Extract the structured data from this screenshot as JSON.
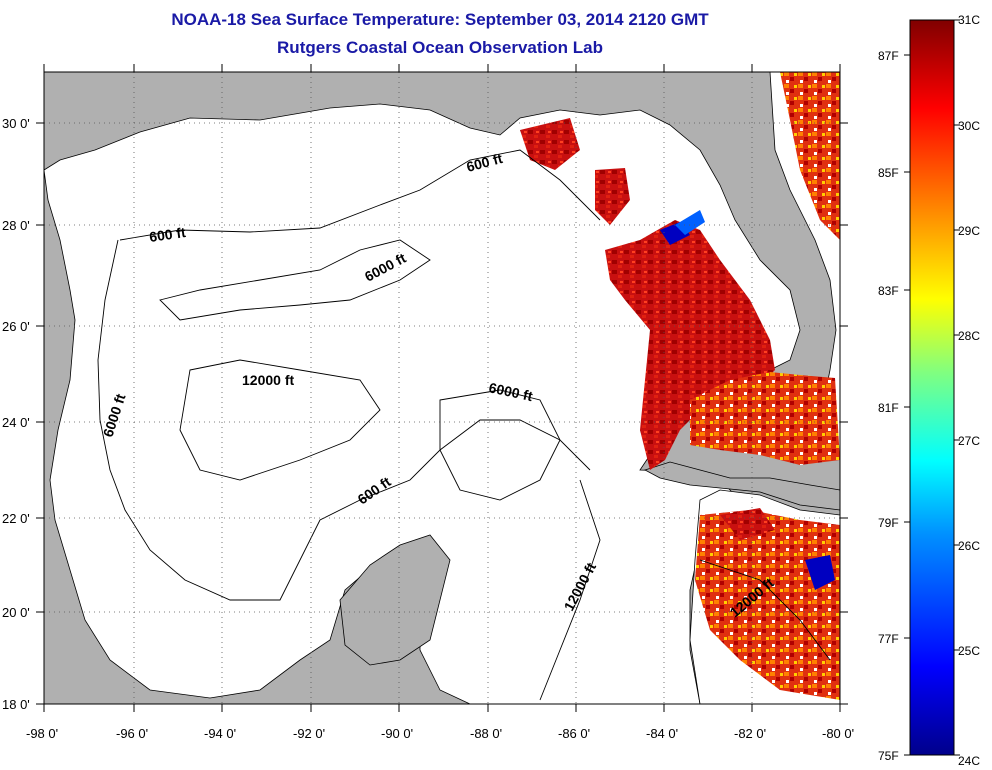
{
  "header": {
    "title": "NOAA-18 Sea Surface Temperature:  September 03, 2014 2120 GMT",
    "subtitle": "Rutgers Coastal Ocean Observation Lab"
  },
  "axes": {
    "lat_labels": [
      "18 0'",
      "20 0'",
      "22 0'",
      "24 0'",
      "26 0'",
      "28 0'",
      "30 0'"
    ],
    "lon_labels": [
      "-98 0'",
      "-96 0'",
      "-94 0'",
      "-92 0'",
      "-90 0'",
      "-88 0'",
      "-86 0'",
      "-84 0'",
      "-82 0'",
      "-80 0'"
    ]
  },
  "contour_labels": [
    "600 ft",
    "600 ft",
    "6000 ft",
    "6000 ft",
    "12000 ft",
    "6000 ft",
    "600 ft",
    "12000 ft",
    "12000 ft"
  ],
  "colorbar": {
    "celsius": [
      "31C",
      "30C",
      "29C",
      "28C",
      "27C",
      "26C",
      "25C",
      "24C"
    ],
    "fahrenheit": [
      "87F",
      "85F",
      "83F",
      "81F",
      "79F",
      "77F",
      "75F"
    ],
    "min_c": 24,
    "max_c": 31,
    "colors": [
      "#00008b",
      "#0000ff",
      "#0080ff",
      "#00ffff",
      "#80ff80",
      "#ffff00",
      "#ff8000",
      "#ff0000",
      "#800000"
    ]
  },
  "map": {
    "land_color": "#b0b0b0",
    "water_color": "#ffffff",
    "lat_range": [
      18,
      31
    ],
    "lon_range": [
      -98,
      -80
    ]
  }
}
